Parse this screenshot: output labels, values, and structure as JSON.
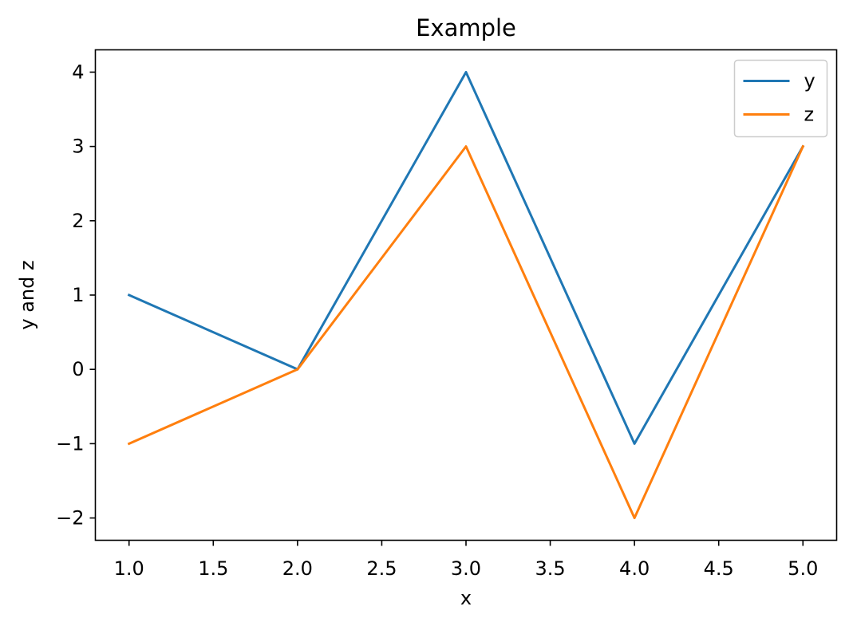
{
  "chart_data": {
    "type": "line",
    "title": "Example",
    "xlabel": "x",
    "ylabel": "y and z",
    "x": [
      1.0,
      2.0,
      3.0,
      4.0,
      5.0
    ],
    "series": [
      {
        "name": "y",
        "values": [
          1,
          0,
          4,
          -1,
          3
        ],
        "color": "#1f77b4"
      },
      {
        "name": "z",
        "values": [
          -1,
          0,
          3,
          -2,
          3
        ],
        "color": "#ff7f0e"
      }
    ],
    "xlim": [
      0.8,
      5.2
    ],
    "ylim": [
      -2.3,
      4.3
    ],
    "xticks": [
      "1.0",
      "1.5",
      "2.0",
      "2.5",
      "3.0",
      "3.5",
      "4.0",
      "4.5",
      "5.0"
    ],
    "yticks": [
      "−2",
      "−1",
      "0",
      "1",
      "2",
      "3",
      "4"
    ],
    "legend": "top-right",
    "grid": false
  }
}
